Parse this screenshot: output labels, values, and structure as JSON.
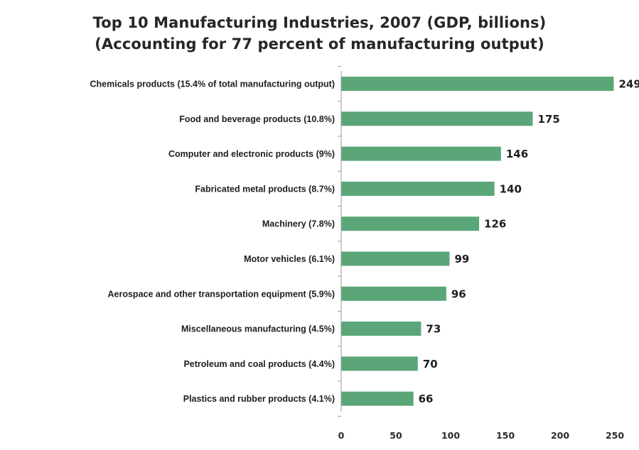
{
  "chart_data": {
    "type": "bar",
    "orientation": "horizontal",
    "title": "Top 10 Manufacturing Industries, 2007 (GDP, billions)",
    "subtitle": "(Accounting for 77 percent of manufacturing output)",
    "categories": [
      "Chemicals products (15.4% of total manufacturing output)",
      "Food and beverage products (10.8%)",
      "Computer and electronic products (9%)",
      "Fabricated metal products (8.7%)",
      "Machinery (7.8%)",
      "Motor vehicles (6.1%)",
      "Aerospace and other transportation equipment (5.9%)",
      "Miscellaneous manufacturing (4.5%)",
      "Petroleum and coal products (4.4%)",
      "Plastics and rubber products (4.1%)"
    ],
    "values": [
      249,
      175,
      146,
      140,
      126,
      99,
      96,
      73,
      70,
      66
    ],
    "data_labels": [
      "249",
      "175",
      "146",
      "140",
      "126",
      "99",
      "96",
      "73",
      "70",
      "66"
    ],
    "xticks": [
      "0",
      "50",
      "100",
      "150",
      "200",
      "250"
    ],
    "xlabel": "",
    "ylabel": "",
    "xlim": [
      0,
      250
    ],
    "grid": false,
    "legend": "none",
    "bar_color": "#5aa678"
  }
}
